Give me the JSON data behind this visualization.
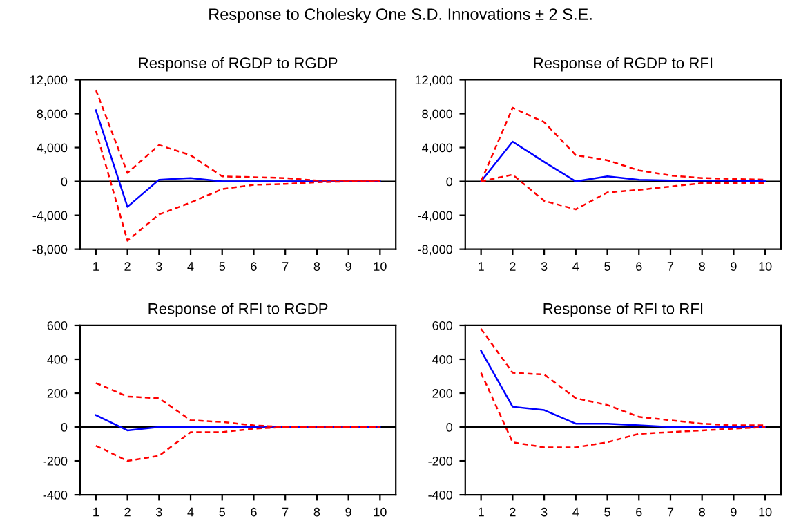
{
  "chart_data": [
    {
      "type": "line",
      "title": "Response of RGDP to RGDP",
      "annotations": [
        "Response to Cholesky One S.D. Innovations ± 2 S.E."
      ],
      "categories": [
        "1",
        "2",
        "3",
        "4",
        "5",
        "6",
        "7",
        "8",
        "9",
        "10"
      ],
      "series": [
        {
          "color": "#0000ff",
          "line_style": "solid",
          "values": [
            8400,
            -3000,
            200,
            400,
            0,
            0,
            0,
            0,
            0,
            0
          ]
        },
        {
          "color": "#ff0000",
          "line_style": "dashed",
          "values": [
            10800,
            1000,
            4300,
            3100,
            600,
            500,
            400,
            100,
            100,
            100
          ]
        },
        {
          "color": "#ff0000",
          "line_style": "dashed",
          "values": [
            6000,
            -7000,
            -3900,
            -2500,
            -900,
            -400,
            -300,
            -100,
            0,
            0
          ]
        }
      ],
      "ylim": [
        -8000,
        12000
      ],
      "yticks": [
        {
          "value": -8000,
          "label": "-8,000"
        },
        {
          "value": -4000,
          "label": "-4,000"
        },
        0,
        {
          "value": 4000,
          "label": "4,000"
        },
        {
          "value": 8000,
          "label": "8,000"
        },
        {
          "value": 12000,
          "label": "12,000"
        }
      ],
      "ref_lines": [
        {
          "axis": "y",
          "value": 0,
          "color": "#000000"
        }
      ],
      "grid": false
    },
    {
      "type": "line",
      "title": "Response of RGDP to RFI",
      "categories": [
        "1",
        "2",
        "3",
        "4",
        "5",
        "6",
        "7",
        "8",
        "9",
        "10"
      ],
      "series": [
        {
          "color": "#0000ff",
          "line_style": "solid",
          "values": [
            0,
            4700,
            2300,
            0,
            600,
            200,
            100,
            100,
            100,
            0
          ]
        },
        {
          "color": "#ff0000",
          "line_style": "dashed",
          "values": [
            0,
            8700,
            7000,
            3100,
            2500,
            1300,
            700,
            400,
            300,
            200
          ]
        },
        {
          "color": "#ff0000",
          "line_style": "dashed",
          "values": [
            0,
            800,
            -2300,
            -3300,
            -1300,
            -1000,
            -600,
            -200,
            -200,
            -200
          ]
        }
      ],
      "ylim": [
        -8000,
        12000
      ],
      "yticks": [
        {
          "value": -8000,
          "label": "-8,000"
        },
        {
          "value": -4000,
          "label": "-4,000"
        },
        0,
        {
          "value": 4000,
          "label": "4,000"
        },
        {
          "value": 8000,
          "label": "8,000"
        },
        {
          "value": 12000,
          "label": "12,000"
        }
      ],
      "ref_lines": [
        {
          "axis": "y",
          "value": 0,
          "color": "#000000"
        }
      ],
      "grid": false
    },
    {
      "type": "line",
      "title": "Response of RFI to RGDP",
      "categories": [
        "1",
        "2",
        "3",
        "4",
        "5",
        "6",
        "7",
        "8",
        "9",
        "10"
      ],
      "series": [
        {
          "color": "#0000ff",
          "line_style": "solid",
          "values": [
            70,
            -20,
            0,
            0,
            0,
            0,
            0,
            0,
            0,
            0
          ]
        },
        {
          "color": "#ff0000",
          "line_style": "dashed",
          "values": [
            260,
            180,
            170,
            40,
            30,
            10,
            0,
            0,
            0,
            0
          ]
        },
        {
          "color": "#ff0000",
          "line_style": "dashed",
          "values": [
            -110,
            -200,
            -170,
            -30,
            -30,
            -10,
            0,
            0,
            0,
            0
          ]
        }
      ],
      "ylim": [
        -400,
        600
      ],
      "yticks": [
        -400,
        -200,
        0,
        200,
        400,
        600
      ],
      "ref_lines": [
        {
          "axis": "y",
          "value": 0,
          "color": "#000000"
        }
      ],
      "grid": false
    },
    {
      "type": "line",
      "title": "Response of RFI to RFI",
      "categories": [
        "1",
        "2",
        "3",
        "4",
        "5",
        "6",
        "7",
        "8",
        "9",
        "10"
      ],
      "series": [
        {
          "color": "#0000ff",
          "line_style": "solid",
          "values": [
            450,
            120,
            100,
            20,
            20,
            10,
            0,
            0,
            0,
            0
          ]
        },
        {
          "color": "#ff0000",
          "line_style": "dashed",
          "values": [
            580,
            320,
            310,
            170,
            130,
            60,
            40,
            20,
            10,
            10
          ]
        },
        {
          "color": "#ff0000",
          "line_style": "dashed",
          "values": [
            320,
            -90,
            -120,
            -120,
            -90,
            -40,
            -30,
            -20,
            -10,
            0
          ]
        }
      ],
      "ylim": [
        -400,
        600
      ],
      "yticks": [
        -400,
        -200,
        0,
        200,
        400,
        600
      ],
      "ref_lines": [
        {
          "axis": "y",
          "value": 0,
          "color": "#000000"
        }
      ],
      "grid": false
    }
  ]
}
